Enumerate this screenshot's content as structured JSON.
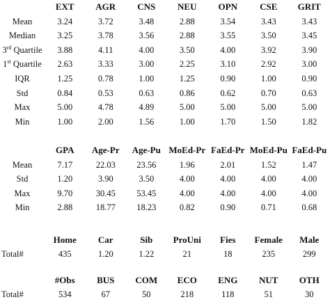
{
  "personality": {
    "headers": [
      "EXT",
      "AGR",
      "CNS",
      "NEU",
      "OPN",
      "CSE",
      "GRIT"
    ],
    "rows": [
      {
        "label": "Mean",
        "values": [
          "3.24",
          "3.72",
          "3.48",
          "2.88",
          "3.54",
          "3.43",
          "3.43"
        ]
      },
      {
        "label": "Median",
        "values": [
          "3.25",
          "3.78",
          "3.56",
          "2.88",
          "3.55",
          "3.50",
          "3.45"
        ]
      },
      {
        "label_pre": "3",
        "label_sup": "rd",
        "label_post": " Quartile",
        "values": [
          "3.88",
          "4.11",
          "4.00",
          "3.50",
          "4.00",
          "3.92",
          "3.90"
        ]
      },
      {
        "label_pre": "1",
        "label_sup": "st",
        "label_post": " Quartile",
        "values": [
          "2.63",
          "3.33",
          "3.00",
          "2.25",
          "3.10",
          "2.92",
          "3.00"
        ]
      },
      {
        "label": "IQR",
        "values": [
          "1.25",
          "0.78",
          "1.00",
          "1.25",
          "0.90",
          "1.00",
          "0.90"
        ]
      },
      {
        "label": "Std",
        "values": [
          "0.84",
          "0.53",
          "0.63",
          "0.86",
          "0.62",
          "0.70",
          "0.63"
        ]
      },
      {
        "label": "Max",
        "values": [
          "5.00",
          "4.78",
          "4.89",
          "5.00",
          "5.00",
          "5.00",
          "5.00"
        ]
      },
      {
        "label": "Min",
        "values": [
          "1.00",
          "2.00",
          "1.56",
          "1.00",
          "1.70",
          "1.50",
          "1.82"
        ]
      }
    ]
  },
  "background": {
    "headers": [
      "GPA",
      "Age-Pr",
      "Age-Pu",
      "MoEd-Pr",
      "FaEd-Pr",
      "MoEd-Pu",
      "FaEd-Pu"
    ],
    "rows": [
      {
        "label": "Mean",
        "values": [
          "7.17",
          "22.03",
          "23.56",
          "1.96",
          "2.01",
          "1.52",
          "1.47"
        ]
      },
      {
        "label": "Std",
        "values": [
          "1.20",
          "3.90",
          "3.50",
          "4.00",
          "4.00",
          "4.00",
          "4.00"
        ]
      },
      {
        "label": "Max",
        "values": [
          "9.70",
          "30.45",
          "53.45",
          "4.00",
          "4.00",
          "4.00",
          "4.00"
        ]
      },
      {
        "label": "Min",
        "values": [
          "2.88",
          "18.77",
          "18.23",
          "0.82",
          "0.90",
          "0.71",
          "0.68"
        ]
      }
    ]
  },
  "counts1": {
    "headers": [
      "Home",
      "Car",
      "Sib",
      "ProUni",
      "Fies",
      "Female",
      "Male"
    ],
    "row": {
      "label": "Total#",
      "values": [
        "435",
        "1.20",
        "1.22",
        "21",
        "18",
        "235",
        "299"
      ]
    }
  },
  "counts2": {
    "headers": [
      "#Obs",
      "BUS",
      "COM",
      "ECO",
      "ENG",
      "NUT",
      "OTH"
    ],
    "row": {
      "label": "Total#",
      "values": [
        "534",
        "67",
        "50",
        "218",
        "118",
        "51",
        "30"
      ]
    }
  }
}
